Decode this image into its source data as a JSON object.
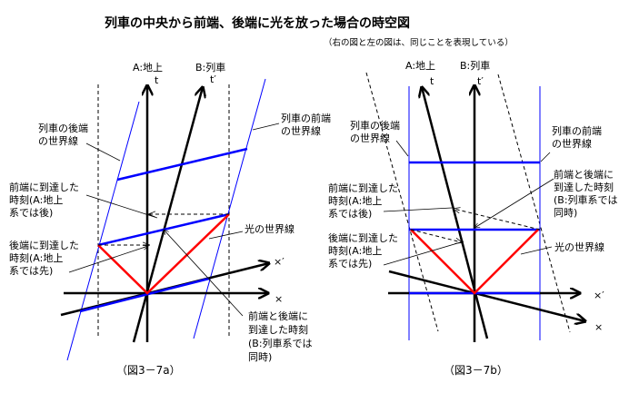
{
  "title": "列車の中央から前端、後端に光を放った場合の時空図",
  "subtitle": "（右の図と左の図は、同じことを表現している）",
  "colors": {
    "train_world_line": "#0000ff",
    "light_world_line": "#ff0000",
    "axes": "#000000"
  },
  "left": {
    "caption": "（図3－7a）",
    "axis_a": "A:地上",
    "axis_t": "t",
    "axis_b": "B:列車",
    "axis_t_prime": "t′",
    "axis_x": "×",
    "axis_x_prime": "×′",
    "rear_world_line": [
      "列車の後端",
      "の世界線"
    ],
    "front_world_line": [
      "列車の前端",
      "の世界線"
    ],
    "front_arrival": [
      "前端に到達した",
      "時刻(A:地上",
      "系では後)"
    ],
    "rear_arrival": [
      "後端に到達した",
      "時刻(A:地上",
      "系では先)"
    ],
    "light_world_line": "光の世界線",
    "simultaneous": [
      "前端と後端に",
      "到達した時刻",
      "(B:列車系では",
      "同時)"
    ]
  },
  "right": {
    "caption": "（図3－7b）",
    "axis_a": "A:地上",
    "axis_t": "t",
    "axis_b": "B:列車",
    "axis_t_prime": "t′",
    "axis_x": "×",
    "axis_x_prime": "×′",
    "rear_world_line": [
      "列車の後端",
      "の世界線"
    ],
    "front_world_line": [
      "列車の前端",
      "の世界線"
    ],
    "front_arrival": [
      "前端に到達した",
      "時刻(A:地上",
      "系では後)"
    ],
    "rear_arrival": [
      "後端に到達した",
      "時刻(A:地上",
      "系では先)"
    ],
    "light_world_line": "光の世界線",
    "simultaneous": [
      "前端と後端に",
      "到達した時刻",
      "(B:列車系では",
      "同時)"
    ]
  }
}
